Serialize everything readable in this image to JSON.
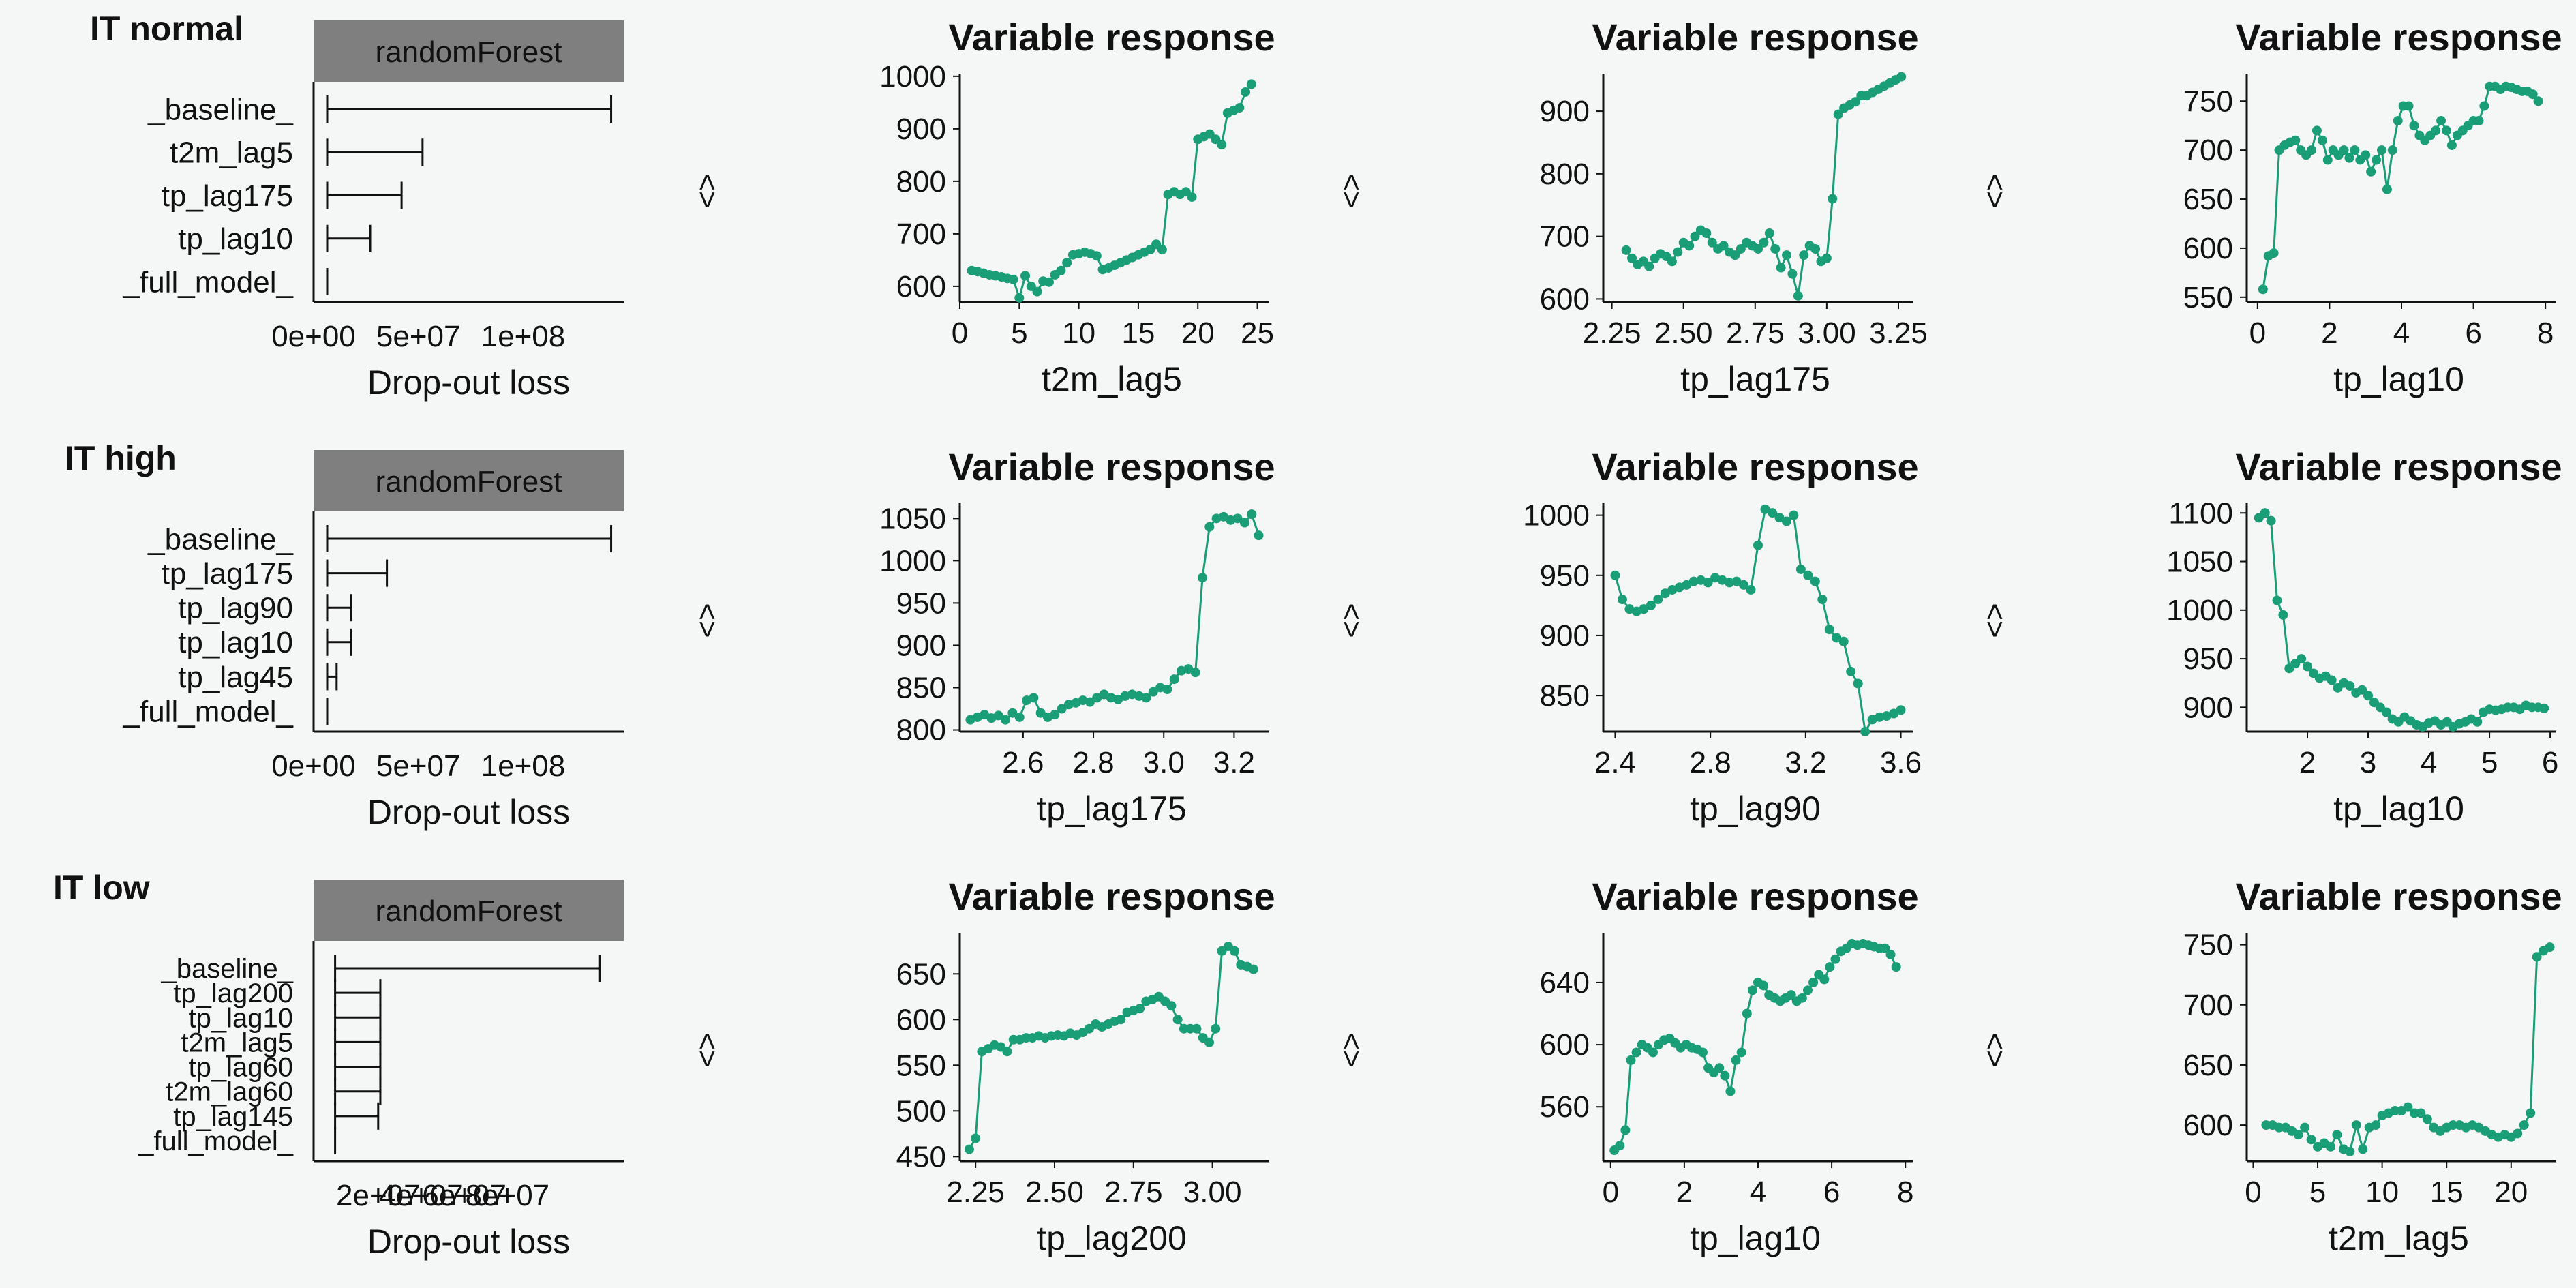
{
  "figure": {
    "bg": "#f5f6f6",
    "line_color": "#1a9e77",
    "strip_color": "#7f7f7f",
    "arrow_glyph": "<>"
  },
  "chart_data": [
    {
      "row": 0,
      "type": "bar",
      "row_label": "IT normal",
      "strip": "randomForest",
      "xlabel": "Drop-out loss",
      "categories": [
        "_baseline_",
        "t2m_lag5",
        "tp_lag175",
        "tp_lag10",
        "_full_model_"
      ],
      "values": [
        142000000.0,
        52000000.0,
        42000000.0,
        27000000.0,
        0
      ],
      "xlim": [
        0,
        148000000.0
      ],
      "xticks": [
        0,
        50000000.0,
        100000000.0
      ],
      "xticklabels": [
        "0e+00",
        "5e+07",
        "1e+08"
      ]
    },
    {
      "row": 0,
      "type": "line",
      "title": "Variable response",
      "xlabel": "t2m_lag5",
      "xlim": [
        0,
        26
      ],
      "ylim": [
        570,
        1005
      ],
      "xticks": [
        0,
        5,
        10,
        15,
        20,
        25
      ],
      "yticks": [
        600,
        700,
        800,
        900,
        1000
      ],
      "x": [
        1,
        1.5,
        2,
        2.5,
        3,
        3.5,
        4,
        4.5,
        5,
        5.5,
        6,
        6.5,
        7,
        7.5,
        8,
        8.5,
        9,
        9.5,
        10,
        10.5,
        11,
        11.5,
        12,
        12.5,
        13,
        13.5,
        14,
        14.5,
        15,
        15.5,
        16,
        16.5,
        17,
        17.5,
        18,
        18.5,
        19,
        19.5,
        20,
        20.5,
        21,
        21.5,
        22,
        22.5,
        23,
        23.5,
        24,
        24.5
      ],
      "y": [
        630,
        628,
        625,
        622,
        620,
        618,
        615,
        613,
        578,
        620,
        600,
        590,
        610,
        608,
        622,
        630,
        645,
        660,
        662,
        665,
        662,
        658,
        632,
        635,
        640,
        645,
        650,
        655,
        660,
        665,
        670,
        680,
        670,
        775,
        780,
        775,
        780,
        770,
        880,
        885,
        890,
        880,
        870,
        930,
        935,
        940,
        970,
        985
      ]
    },
    {
      "row": 0,
      "type": "line",
      "title": "Variable response",
      "xlabel": "tp_lag175",
      "xlim": [
        2.22,
        3.3
      ],
      "ylim": [
        595,
        960
      ],
      "xticks": [
        2.25,
        2.5,
        2.75,
        3.0,
        3.25
      ],
      "xticklabels": [
        "2.25",
        "2.50",
        "2.75",
        "3.00",
        "3.25"
      ],
      "yticks": [
        600,
        700,
        800,
        900
      ],
      "x": [
        2.3,
        2.32,
        2.34,
        2.36,
        2.38,
        2.4,
        2.42,
        2.44,
        2.46,
        2.48,
        2.5,
        2.52,
        2.54,
        2.56,
        2.58,
        2.6,
        2.62,
        2.64,
        2.66,
        2.68,
        2.7,
        2.72,
        2.74,
        2.76,
        2.78,
        2.8,
        2.82,
        2.84,
        2.86,
        2.88,
        2.9,
        2.92,
        2.94,
        2.96,
        2.98,
        3.0,
        3.02,
        3.04,
        3.06,
        3.08,
        3.1,
        3.12,
        3.14,
        3.16,
        3.18,
        3.2,
        3.22,
        3.24,
        3.26
      ],
      "y": [
        678,
        665,
        655,
        660,
        652,
        665,
        672,
        668,
        660,
        675,
        690,
        685,
        700,
        710,
        705,
        690,
        680,
        685,
        675,
        670,
        680,
        690,
        685,
        680,
        690,
        705,
        680,
        650,
        670,
        640,
        605,
        670,
        685,
        680,
        660,
        665,
        760,
        895,
        905,
        910,
        915,
        925,
        925,
        930,
        935,
        940,
        945,
        950,
        955
      ]
    },
    {
      "row": 0,
      "type": "line",
      "title": "Variable response",
      "xlabel": "tp_lag10",
      "xlim": [
        -0.3,
        8.3
      ],
      "ylim": [
        545,
        778
      ],
      "xticks": [
        0,
        2,
        4,
        6,
        8
      ],
      "yticks": [
        550,
        600,
        650,
        700,
        750
      ],
      "x": [
        0.15,
        0.3,
        0.45,
        0.6,
        0.75,
        0.9,
        1.05,
        1.2,
        1.35,
        1.5,
        1.65,
        1.8,
        1.95,
        2.1,
        2.25,
        2.4,
        2.55,
        2.7,
        2.85,
        3.0,
        3.15,
        3.3,
        3.45,
        3.6,
        3.75,
        3.9,
        4.05,
        4.2,
        4.35,
        4.5,
        4.65,
        4.8,
        4.95,
        5.1,
        5.25,
        5.4,
        5.55,
        5.7,
        5.85,
        6.0,
        6.15,
        6.3,
        6.45,
        6.6,
        6.75,
        6.9,
        7.05,
        7.2,
        7.35,
        7.5,
        7.65,
        7.8
      ],
      "y": [
        558,
        592,
        595,
        700,
        705,
        708,
        710,
        700,
        695,
        700,
        720,
        710,
        690,
        700,
        695,
        700,
        692,
        700,
        690,
        695,
        678,
        690,
        700,
        660,
        700,
        730,
        745,
        745,
        725,
        715,
        710,
        715,
        720,
        730,
        720,
        705,
        715,
        720,
        725,
        730,
        730,
        745,
        765,
        765,
        762,
        765,
        764,
        762,
        760,
        760,
        757,
        750
      ]
    },
    {
      "row": 1,
      "type": "bar",
      "row_label": "IT high",
      "strip": "randomForest",
      "xlabel": "Drop-out loss",
      "categories": [
        "_baseline_",
        "tp_lag175",
        "tp_lag90",
        "tp_lag10",
        "tp_lag45",
        "_full_model_"
      ],
      "values": [
        142000000.0,
        35000000.0,
        18000000.0,
        18000000.0,
        11000000.0,
        0
      ],
      "xlim": [
        0,
        148000000.0
      ],
      "xticks": [
        0,
        50000000.0,
        100000000.0
      ],
      "xticklabels": [
        "0e+00",
        "5e+07",
        "1e+08"
      ]
    },
    {
      "row": 1,
      "type": "line",
      "title": "Variable response",
      "xlabel": "tp_lag175",
      "xlim": [
        2.42,
        3.3
      ],
      "ylim": [
        798,
        1068
      ],
      "xticks": [
        2.6,
        2.8,
        3.0,
        3.2
      ],
      "xticklabels": [
        "2.6",
        "2.8",
        "3.0",
        "3.2"
      ],
      "yticks": [
        800,
        850,
        900,
        950,
        1000,
        1050
      ],
      "x": [
        2.45,
        2.47,
        2.49,
        2.51,
        2.53,
        2.55,
        2.57,
        2.59,
        2.61,
        2.63,
        2.65,
        2.67,
        2.69,
        2.71,
        2.73,
        2.75,
        2.77,
        2.79,
        2.81,
        2.83,
        2.85,
        2.87,
        2.89,
        2.91,
        2.93,
        2.95,
        2.97,
        2.99,
        3.01,
        3.03,
        3.05,
        3.07,
        3.09,
        3.11,
        3.13,
        3.15,
        3.17,
        3.19,
        3.21,
        3.23,
        3.25,
        3.27
      ],
      "y": [
        812,
        815,
        818,
        814,
        817,
        812,
        820,
        815,
        835,
        838,
        820,
        815,
        818,
        825,
        830,
        832,
        835,
        833,
        838,
        842,
        838,
        836,
        840,
        842,
        840,
        838,
        845,
        850,
        848,
        860,
        870,
        872,
        868,
        980,
        1040,
        1050,
        1052,
        1048,
        1050,
        1045,
        1055,
        1030
      ]
    },
    {
      "row": 1,
      "type": "line",
      "title": "Variable response",
      "xlabel": "tp_lag90",
      "xlim": [
        2.35,
        3.65
      ],
      "ylim": [
        820,
        1010
      ],
      "xticks": [
        2.4,
        2.8,
        3.2,
        3.6
      ],
      "xticklabels": [
        "2.4",
        "2.8",
        "3.2",
        "3.6"
      ],
      "yticks": [
        850,
        900,
        950,
        1000
      ],
      "x": [
        2.4,
        2.43,
        2.46,
        2.49,
        2.52,
        2.55,
        2.58,
        2.61,
        2.64,
        2.67,
        2.7,
        2.73,
        2.76,
        2.79,
        2.82,
        2.85,
        2.88,
        2.91,
        2.94,
        2.97,
        3.0,
        3.03,
        3.06,
        3.09,
        3.12,
        3.15,
        3.18,
        3.21,
        3.24,
        3.27,
        3.3,
        3.33,
        3.36,
        3.39,
        3.42,
        3.45,
        3.48,
        3.51,
        3.54,
        3.57,
        3.6
      ],
      "y": [
        950,
        930,
        922,
        920,
        922,
        925,
        930,
        935,
        938,
        940,
        942,
        945,
        946,
        944,
        948,
        946,
        944,
        945,
        942,
        938,
        975,
        1005,
        1002,
        998,
        995,
        1000,
        955,
        950,
        945,
        930,
        905,
        898,
        895,
        870,
        860,
        820,
        830,
        832,
        833,
        835,
        838
      ]
    },
    {
      "row": 1,
      "type": "line",
      "title": "Variable response",
      "xlabel": "tp_lag10",
      "xlim": [
        1.0,
        6.1
      ],
      "ylim": [
        875,
        1110
      ],
      "xticks": [
        2,
        3,
        4,
        5,
        6
      ],
      "yticks": [
        900,
        950,
        1000,
        1050,
        1100
      ],
      "x": [
        1.2,
        1.3,
        1.4,
        1.5,
        1.6,
        1.7,
        1.8,
        1.9,
        2.0,
        2.1,
        2.2,
        2.3,
        2.4,
        2.5,
        2.6,
        2.7,
        2.8,
        2.9,
        3.0,
        3.1,
        3.2,
        3.3,
        3.4,
        3.5,
        3.6,
        3.7,
        3.8,
        3.9,
        4.0,
        4.1,
        4.2,
        4.3,
        4.4,
        4.5,
        4.6,
        4.7,
        4.8,
        4.9,
        5.0,
        5.1,
        5.2,
        5.3,
        5.4,
        5.5,
        5.6,
        5.7,
        5.8,
        5.9
      ],
      "y": [
        1095,
        1100,
        1092,
        1010,
        995,
        940,
        945,
        950,
        942,
        935,
        930,
        932,
        928,
        920,
        925,
        922,
        915,
        918,
        912,
        905,
        900,
        895,
        888,
        885,
        890,
        886,
        882,
        880,
        884,
        886,
        882,
        885,
        880,
        883,
        885,
        888,
        885,
        895,
        898,
        897,
        898,
        900,
        900,
        898,
        902,
        900,
        900,
        899
      ]
    },
    {
      "row": 2,
      "type": "bar",
      "row_label": "IT low",
      "strip": "randomForest",
      "xlabel": "Drop-out loss",
      "categories": [
        "_baseline_",
        "tp_lag200",
        "tp_lag10",
        "t2m_lag5",
        "tp_lag60",
        "t2m_lag60",
        "tp_lag145",
        "_full_model_"
      ],
      "values": [
        123000000.0,
        21000000.0,
        21000000.0,
        21000000.0,
        21000000.0,
        21000000.0,
        20000000.0,
        0
      ],
      "xlim": [
        -10000000.0,
        134000000.0
      ],
      "xticks": [
        20000000.0,
        40000000.0,
        60000000.0,
        80000000.0
      ],
      "xticklabels": [
        "2e+07",
        "4e+07",
        "6e+07",
        "8e+07"
      ]
    },
    {
      "row": 2,
      "type": "line",
      "title": "Variable response",
      "xlabel": "tp_lag200",
      "xlim": [
        2.2,
        3.18
      ],
      "ylim": [
        445,
        695
      ],
      "xticks": [
        2.25,
        2.5,
        2.75,
        3.0
      ],
      "xticklabels": [
        "2.25",
        "2.50",
        "2.75",
        "3.00"
      ],
      "yticks": [
        450,
        500,
        550,
        600,
        650
      ],
      "x": [
        2.23,
        2.25,
        2.27,
        2.29,
        2.31,
        2.33,
        2.35,
        2.37,
        2.39,
        2.41,
        2.43,
        2.45,
        2.47,
        2.49,
        2.51,
        2.53,
        2.55,
        2.57,
        2.59,
        2.61,
        2.63,
        2.65,
        2.67,
        2.69,
        2.71,
        2.73,
        2.75,
        2.77,
        2.79,
        2.81,
        2.83,
        2.85,
        2.87,
        2.89,
        2.91,
        2.93,
        2.95,
        2.97,
        2.99,
        3.01,
        3.03,
        3.05,
        3.07,
        3.09,
        3.11,
        3.13
      ],
      "y": [
        458,
        470,
        565,
        568,
        572,
        570,
        565,
        578,
        578,
        580,
        580,
        582,
        580,
        582,
        583,
        582,
        585,
        583,
        586,
        590,
        595,
        592,
        595,
        598,
        600,
        608,
        610,
        612,
        620,
        622,
        625,
        620,
        615,
        600,
        590,
        590,
        590,
        580,
        575,
        590,
        675,
        680,
        675,
        660,
        658,
        655
      ]
    },
    {
      "row": 2,
      "type": "line",
      "title": "Variable response",
      "xlabel": "tp_lag10",
      "xlim": [
        -0.2,
        8.2
      ],
      "ylim": [
        525,
        672
      ],
      "xticks": [
        0,
        2,
        4,
        6,
        8
      ],
      "yticks": [
        560,
        600,
        640
      ],
      "x": [
        0.1,
        0.25,
        0.4,
        0.55,
        0.7,
        0.85,
        1.0,
        1.15,
        1.3,
        1.45,
        1.6,
        1.75,
        1.9,
        2.05,
        2.2,
        2.35,
        2.5,
        2.65,
        2.8,
        2.95,
        3.1,
        3.25,
        3.4,
        3.55,
        3.7,
        3.85,
        4.0,
        4.15,
        4.3,
        4.45,
        4.6,
        4.75,
        4.9,
        5.05,
        5.2,
        5.35,
        5.5,
        5.65,
        5.8,
        5.95,
        6.1,
        6.25,
        6.4,
        6.55,
        6.7,
        6.85,
        7.0,
        7.15,
        7.3,
        7.45,
        7.6,
        7.75
      ],
      "y": [
        532,
        535,
        545,
        590,
        595,
        600,
        598,
        595,
        600,
        603,
        604,
        601,
        598,
        600,
        598,
        597,
        595,
        585,
        582,
        585,
        580,
        570,
        590,
        595,
        620,
        635,
        640,
        638,
        632,
        630,
        628,
        630,
        632,
        628,
        630,
        635,
        640,
        645,
        642,
        650,
        655,
        660,
        662,
        665,
        664,
        665,
        664,
        663,
        662,
        662,
        658,
        650
      ]
    },
    {
      "row": 2,
      "type": "line",
      "title": "Variable response",
      "xlabel": "t2m_lag5",
      "xlim": [
        -0.5,
        23.5
      ],
      "ylim": [
        570,
        760
      ],
      "xticks": [
        0,
        5,
        10,
        15,
        20
      ],
      "yticks": [
        600,
        650,
        700,
        750
      ],
      "x": [
        1,
        1.5,
        2,
        2.5,
        3,
        3.5,
        4,
        4.5,
        5,
        5.5,
        6,
        6.5,
        7,
        7.5,
        8,
        8.5,
        9,
        9.5,
        10,
        10.5,
        11,
        11.5,
        12,
        12.5,
        13,
        13.5,
        14,
        14.5,
        15,
        15.5,
        16,
        16.5,
        17,
        17.5,
        18,
        18.5,
        19,
        19.5,
        20,
        20.5,
        21,
        21.5,
        22,
        22.5,
        23
      ],
      "y": [
        600,
        600,
        598,
        598,
        595,
        592,
        598,
        588,
        582,
        585,
        582,
        592,
        580,
        578,
        600,
        580,
        598,
        600,
        608,
        610,
        612,
        612,
        615,
        610,
        610,
        605,
        598,
        595,
        598,
        600,
        600,
        598,
        600,
        598,
        595,
        592,
        590,
        592,
        590,
        593,
        600,
        610,
        740,
        745,
        748
      ]
    }
  ]
}
